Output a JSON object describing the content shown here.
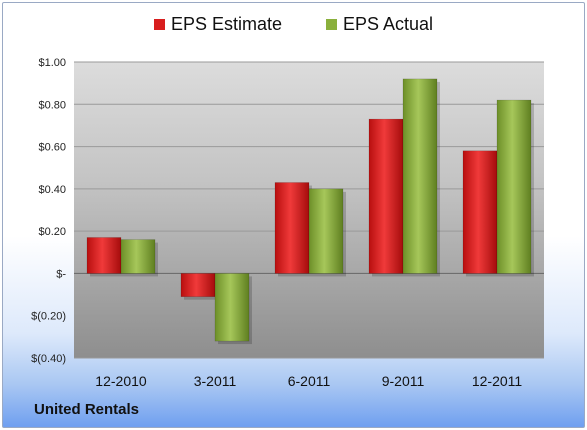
{
  "chart_data": {
    "type": "bar",
    "categories": [
      "12-2010",
      "3-2011",
      "6-2011",
      "9-2011",
      "12-2011"
    ],
    "series": [
      {
        "name": "EPS Estimate",
        "color": "#d81e1e",
        "values": [
          0.17,
          -0.11,
          0.43,
          0.73,
          0.58
        ]
      },
      {
        "name": "EPS Actual",
        "color": "#8ab03c",
        "values": [
          0.16,
          -0.32,
          0.4,
          0.92,
          0.82
        ]
      }
    ],
    "ylim": [
      -0.4,
      1.0
    ],
    "yticks": [
      1.0,
      0.8,
      0.6,
      0.4,
      0.2,
      0,
      -0.2,
      -0.4
    ],
    "ytick_labels": [
      "$1.00",
      "$0.80",
      "$0.60",
      "$0.40",
      "$0.20",
      "$-",
      "$(0.20)",
      "$(0.40)"
    ],
    "legend_position": "top-center",
    "grid": true
  },
  "footer": {
    "company": "United Rentals"
  }
}
